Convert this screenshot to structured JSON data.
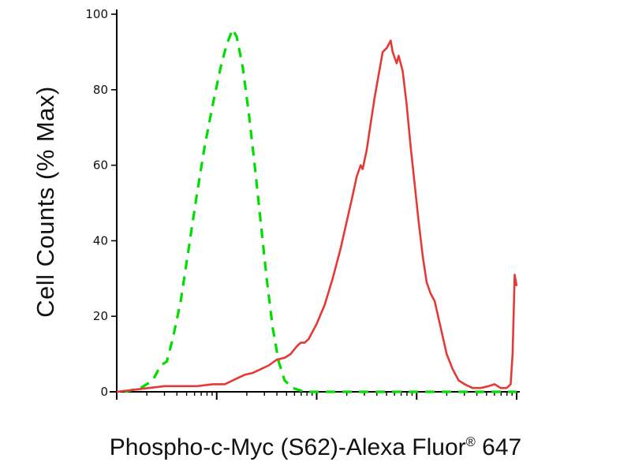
{
  "figure": {
    "ylabel": "Cell Counts (% Max)",
    "xlabel_main": "Phospho-c-Myc (S62)-Alexa Fluor",
    "xlabel_sup": "®",
    "xlabel_tail": " 647"
  },
  "chart_data": {
    "type": "line",
    "subtype": "flow-cytometry-histogram",
    "title": "",
    "xlabel": "Phospho-c-Myc (S62)-Alexa Fluor® 647",
    "ylabel": "Cell Counts (% Max)",
    "ylim": [
      0,
      100
    ],
    "yticks": [
      0,
      20,
      40,
      60,
      80,
      100
    ],
    "xscale": "log",
    "x_decades": 4,
    "x_units": "fraction-of-axis (log scale, 4 decades, no numeric x tick labels shown)",
    "grid": false,
    "legend": "none",
    "axis_color": "#000000",
    "tick_label_color": "#111111",
    "series": [
      {
        "name": "green-dashed-control",
        "color": "#00dd00",
        "style": "dashed",
        "dash": [
          12,
          9
        ],
        "width": 3.2,
        "points": [
          [
            0.02,
            0
          ],
          [
            0.06,
            1
          ],
          [
            0.09,
            3
          ],
          [
            0.11,
            7
          ],
          [
            0.125,
            8
          ],
          [
            0.14,
            14
          ],
          [
            0.16,
            24
          ],
          [
            0.18,
            38
          ],
          [
            0.2,
            52
          ],
          [
            0.22,
            65
          ],
          [
            0.24,
            76
          ],
          [
            0.26,
            86
          ],
          [
            0.275,
            92
          ],
          [
            0.29,
            96
          ],
          [
            0.3,
            94
          ],
          [
            0.315,
            86
          ],
          [
            0.33,
            74
          ],
          [
            0.345,
            60
          ],
          [
            0.36,
            45
          ],
          [
            0.375,
            30
          ],
          [
            0.39,
            17
          ],
          [
            0.405,
            8
          ],
          [
            0.42,
            3
          ],
          [
            0.44,
            1
          ],
          [
            0.47,
            0
          ],
          [
            0.55,
            0
          ],
          [
            0.65,
            0
          ],
          [
            0.75,
            0
          ],
          [
            0.85,
            0
          ],
          [
            0.93,
            0
          ],
          [
            1.0,
            0
          ]
        ]
      },
      {
        "name": "red-solid-sample",
        "color": "#e53935",
        "style": "solid",
        "dash": null,
        "width": 2.6,
        "points": [
          [
            0.0,
            0
          ],
          [
            0.04,
            0.5
          ],
          [
            0.08,
            1
          ],
          [
            0.12,
            1.5
          ],
          [
            0.16,
            1.5
          ],
          [
            0.2,
            1.5
          ],
          [
            0.24,
            2
          ],
          [
            0.27,
            2
          ],
          [
            0.3,
            3.5
          ],
          [
            0.32,
            4.5
          ],
          [
            0.34,
            5
          ],
          [
            0.36,
            6
          ],
          [
            0.38,
            7
          ],
          [
            0.4,
            8.5
          ],
          [
            0.42,
            9
          ],
          [
            0.435,
            10
          ],
          [
            0.45,
            12
          ],
          [
            0.46,
            13
          ],
          [
            0.47,
            13
          ],
          [
            0.48,
            14
          ],
          [
            0.5,
            18
          ],
          [
            0.52,
            23
          ],
          [
            0.54,
            30
          ],
          [
            0.56,
            38
          ],
          [
            0.575,
            45
          ],
          [
            0.59,
            52
          ],
          [
            0.6,
            57
          ],
          [
            0.61,
            60
          ],
          [
            0.615,
            59
          ],
          [
            0.625,
            64
          ],
          [
            0.635,
            71
          ],
          [
            0.645,
            78
          ],
          [
            0.655,
            84
          ],
          [
            0.665,
            90
          ],
          [
            0.675,
            91
          ],
          [
            0.685,
            93
          ],
          [
            0.69,
            90
          ],
          [
            0.7,
            87
          ],
          [
            0.705,
            89
          ],
          [
            0.715,
            85
          ],
          [
            0.725,
            76
          ],
          [
            0.735,
            65
          ],
          [
            0.745,
            55
          ],
          [
            0.755,
            45
          ],
          [
            0.765,
            36
          ],
          [
            0.775,
            29
          ],
          [
            0.785,
            26
          ],
          [
            0.795,
            24
          ],
          [
            0.81,
            17
          ],
          [
            0.825,
            10
          ],
          [
            0.84,
            6
          ],
          [
            0.855,
            3
          ],
          [
            0.87,
            2
          ],
          [
            0.89,
            1
          ],
          [
            0.91,
            1
          ],
          [
            0.93,
            1.5
          ],
          [
            0.945,
            2
          ],
          [
            0.96,
            1
          ],
          [
            0.975,
            1
          ],
          [
            0.985,
            2
          ],
          [
            0.99,
            10
          ],
          [
            0.995,
            31
          ],
          [
            1.0,
            28
          ]
        ]
      }
    ]
  }
}
